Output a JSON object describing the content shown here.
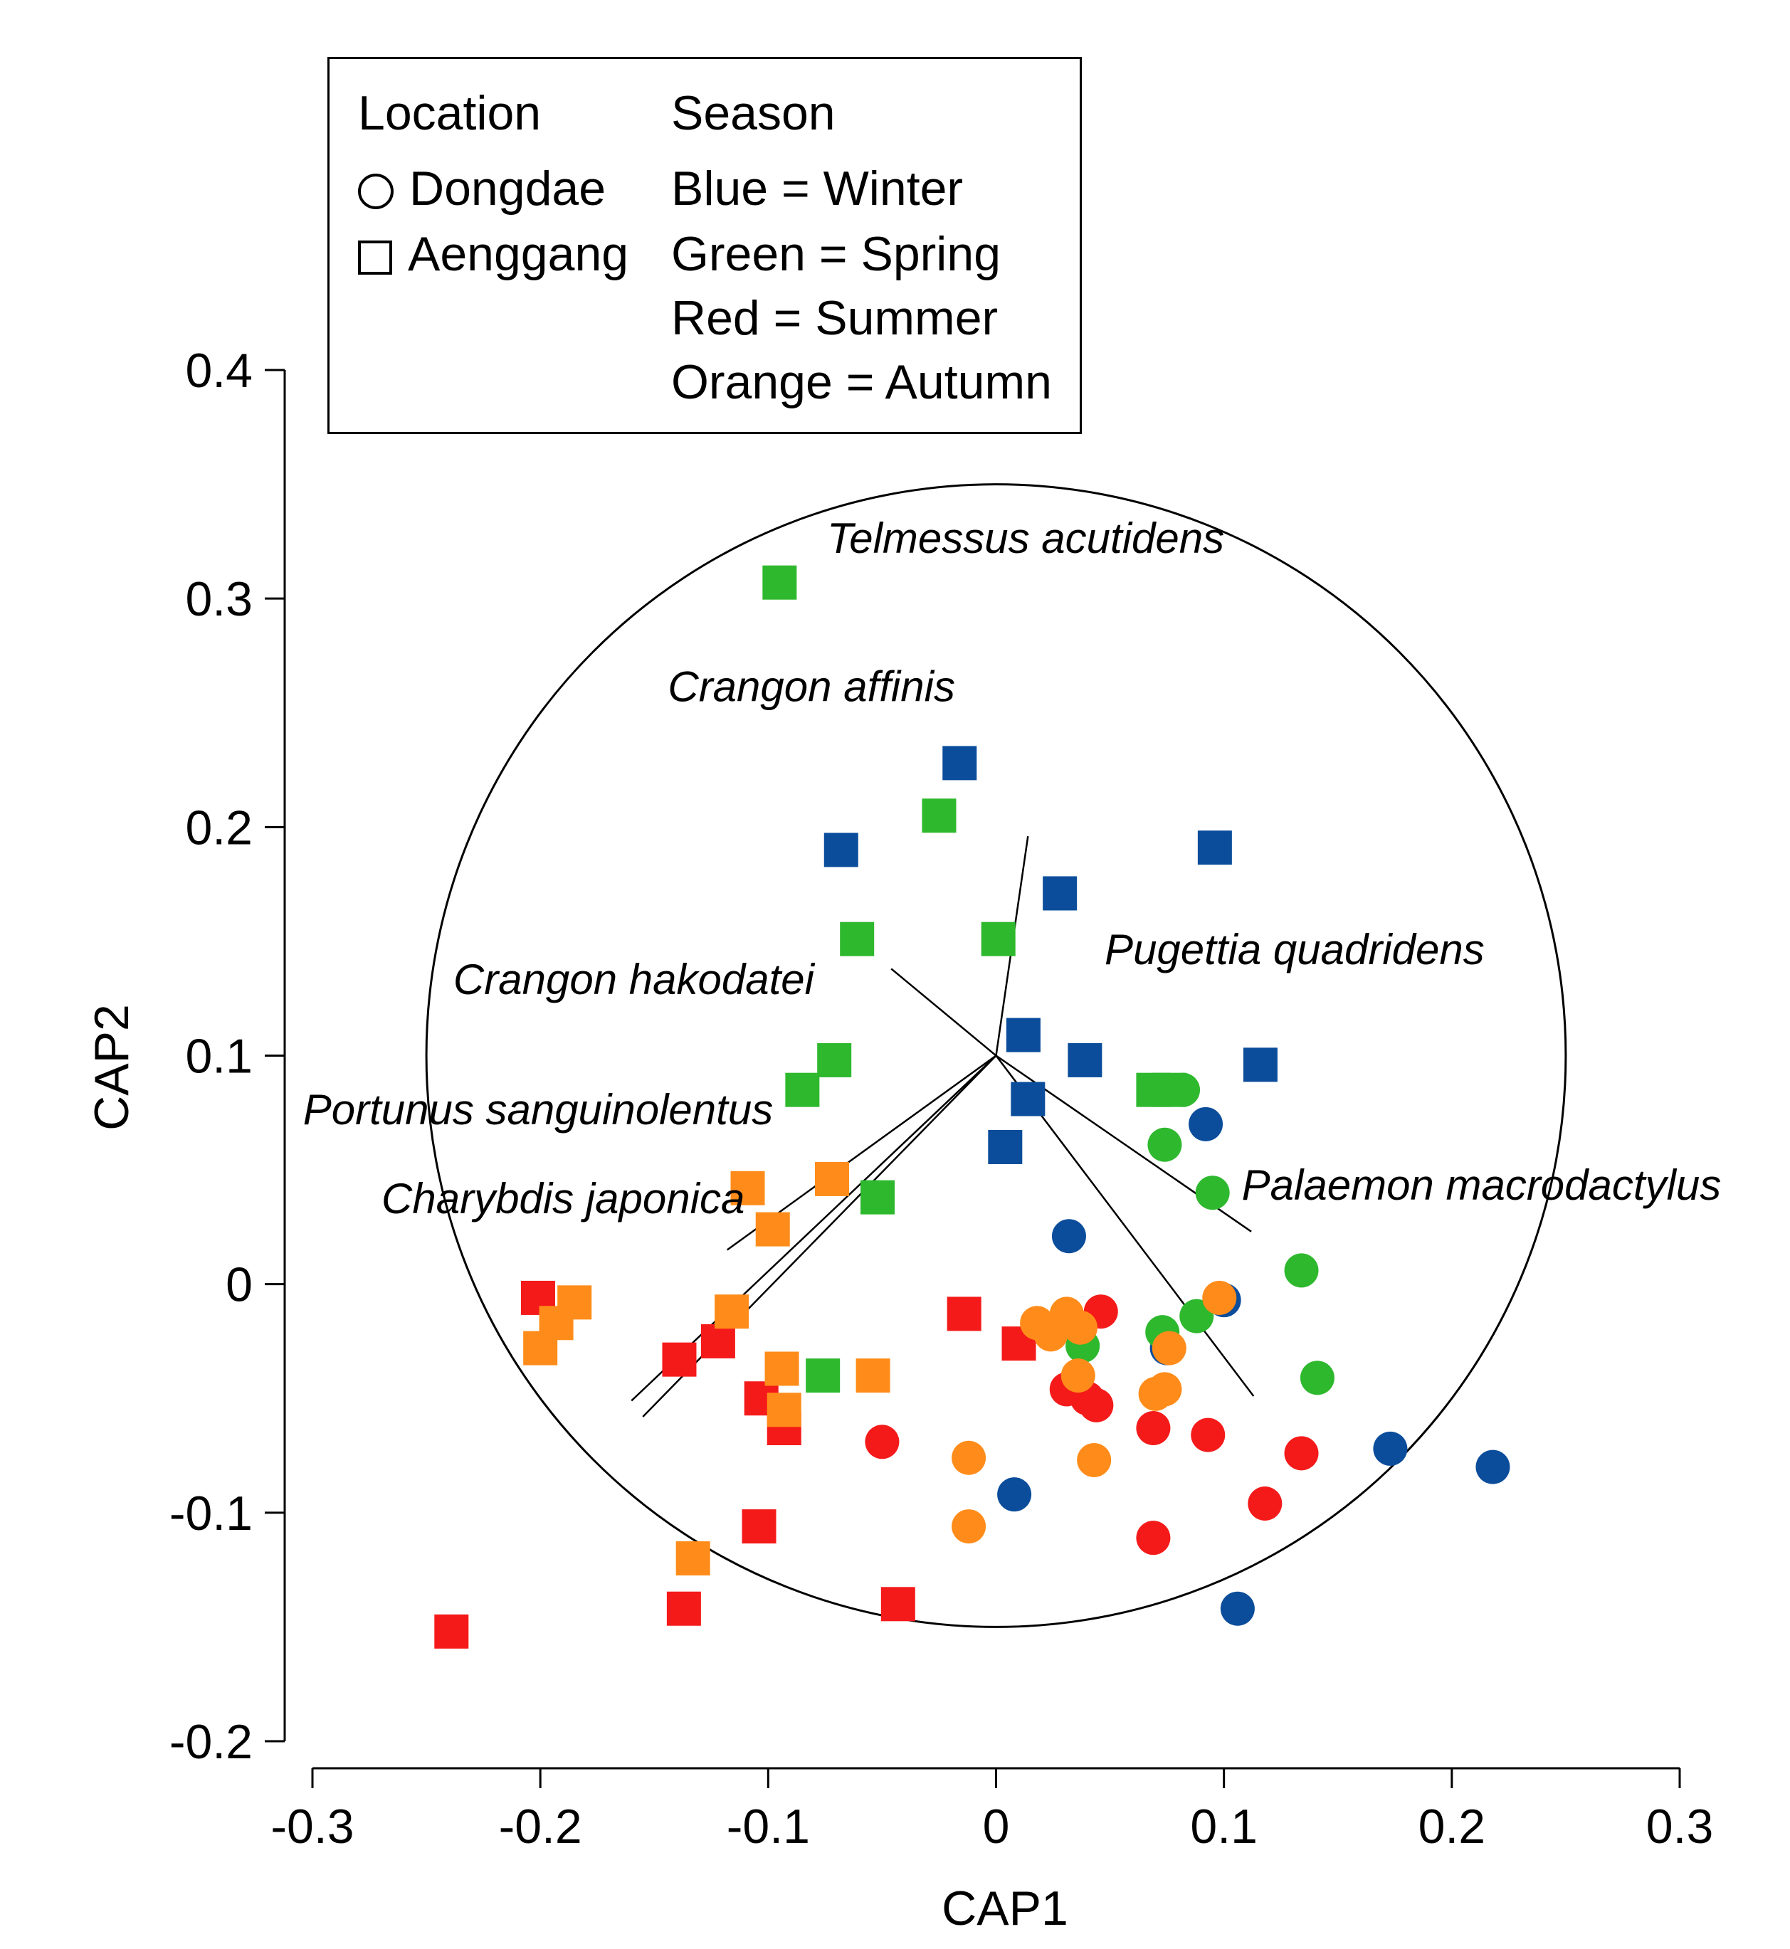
{
  "legend": {
    "location_heading": "Location",
    "season_heading": "Season",
    "locations": [
      {
        "shape": "circle",
        "label": "Dongdae"
      },
      {
        "shape": "square",
        "label": "Aenggang"
      }
    ],
    "seasons": [
      "Blue = Winter",
      "Green = Spring",
      "Red = Summer",
      "Orange = Autumn"
    ]
  },
  "colors": {
    "Winter": "#0b4d9b",
    "Spring": "#2eb82e",
    "Summer": "#f51a1a",
    "Autumn": "#ff8c1a"
  },
  "chart_data": {
    "type": "scatter",
    "xlabel": "CAP1",
    "ylabel": "CAP2",
    "xlim": [
      -0.3,
      0.3
    ],
    "ylim": [
      -0.2,
      0.4
    ],
    "xticks": [
      "-0.3",
      "-0.2",
      "-0.1",
      "0",
      "0.1",
      "0.2",
      "0.3"
    ],
    "yticks": [
      "0.4",
      "0.3",
      "0.2",
      "0.1",
      "0",
      "-0.1",
      "-0.2"
    ],
    "xtick_values": [
      -0.3,
      -0.2,
      -0.1,
      0,
      0.1,
      0.2,
      0.3
    ],
    "ytick_values": [
      0.4,
      0.3,
      0.2,
      0.1,
      0,
      -0.1,
      -0.2
    ],
    "circle": {
      "center": [
        0,
        0.1
      ],
      "radius": 0.25
    },
    "vectors": [
      {
        "label": "Telmessus acutidens",
        "end": [
          0.014,
          0.196
        ]
      },
      {
        "label": "Crangon affinis",
        "end": [
          -0.046,
          0.138
        ]
      },
      {
        "label": "Crangon hakodatei",
        "end": [
          -0.118,
          0.015
        ]
      },
      {
        "label": "Pugettia quadridens",
        "end": [
          0.112,
          0.023
        ]
      },
      {
        "label": "Portunus sanguinolentus",
        "end": [
          -0.16,
          -0.051
        ]
      },
      {
        "label": "Charybdis japonica",
        "end": [
          -0.155,
          -0.058
        ]
      },
      {
        "label": "Palaemon macrodactylus",
        "end": [
          0.113,
          -0.049
        ]
      }
    ],
    "series": [
      {
        "name": "Winter",
        "location": "Aenggang",
        "points": [
          [
            -0.016,
            0.228
          ],
          [
            -0.068,
            0.19
          ],
          [
            0.096,
            0.191
          ],
          [
            0.028,
            0.171
          ],
          [
            0.012,
            0.109
          ],
          [
            0.039,
            0.098
          ],
          [
            0.116,
            0.096
          ],
          [
            0.014,
            0.081
          ],
          [
            0.004,
            0.06
          ]
        ]
      },
      {
        "name": "Winter",
        "location": "Dongdae",
        "points": [
          [
            0.092,
            0.07
          ],
          [
            0.032,
            0.021
          ],
          [
            0.1,
            -0.007
          ],
          [
            0.075,
            -0.028
          ],
          [
            0.173,
            -0.072
          ],
          [
            0.218,
            -0.08
          ],
          [
            0.008,
            -0.092
          ],
          [
            0.106,
            -0.142
          ]
        ]
      },
      {
        "name": "Spring",
        "location": "Aenggang",
        "points": [
          [
            -0.095,
            0.307
          ],
          [
            -0.025,
            0.205
          ],
          [
            -0.061,
            0.151
          ],
          [
            0.001,
            0.151
          ],
          [
            -0.071,
            0.098
          ],
          [
            -0.085,
            0.085
          ],
          [
            0.069,
            0.085
          ],
          [
            0.076,
            0.085
          ],
          [
            -0.052,
            0.038
          ],
          [
            -0.076,
            -0.04
          ]
        ]
      },
      {
        "name": "Spring",
        "location": "Dongdae",
        "points": [
          [
            0.082,
            0.085
          ],
          [
            0.074,
            0.061
          ],
          [
            0.095,
            0.04
          ],
          [
            0.134,
            0.006
          ],
          [
            0.088,
            -0.014
          ],
          [
            0.073,
            -0.021
          ],
          [
            0.038,
            -0.027
          ],
          [
            0.141,
            -0.041
          ]
        ]
      },
      {
        "name": "Summer",
        "location": "Aenggang",
        "points": [
          [
            -0.201,
            -0.006
          ],
          [
            -0.014,
            -0.013
          ],
          [
            -0.139,
            -0.033
          ],
          [
            -0.122,
            -0.025
          ],
          [
            0.01,
            -0.026
          ],
          [
            -0.103,
            -0.05
          ],
          [
            -0.093,
            -0.063
          ],
          [
            -0.104,
            -0.106
          ],
          [
            -0.137,
            -0.142
          ],
          [
            -0.043,
            -0.14
          ],
          [
            -0.239,
            -0.152
          ]
        ]
      },
      {
        "name": "Summer",
        "location": "Dongdae",
        "points": [
          [
            0.046,
            -0.012
          ],
          [
            0.031,
            -0.046
          ],
          [
            0.04,
            -0.05
          ],
          [
            0.044,
            -0.053
          ],
          [
            -0.05,
            -0.069
          ],
          [
            0.069,
            -0.063
          ],
          [
            0.093,
            -0.066
          ],
          [
            0.134,
            -0.074
          ],
          [
            0.118,
            -0.096
          ],
          [
            0.069,
            -0.111
          ]
        ]
      },
      {
        "name": "Autumn",
        "location": "Aenggang",
        "points": [
          [
            -0.109,
            0.042
          ],
          [
            -0.072,
            0.046
          ],
          [
            -0.098,
            0.024
          ],
          [
            -0.185,
            -0.008
          ],
          [
            -0.193,
            -0.017
          ],
          [
            -0.116,
            -0.012
          ],
          [
            -0.2,
            -0.028
          ],
          [
            -0.094,
            -0.037
          ],
          [
            -0.054,
            -0.04
          ],
          [
            -0.093,
            -0.055
          ],
          [
            -0.133,
            -0.12
          ]
        ]
      },
      {
        "name": "Autumn",
        "location": "Dongdae",
        "points": [
          [
            0.018,
            -0.017
          ],
          [
            0.031,
            -0.013
          ],
          [
            0.024,
            -0.022
          ],
          [
            0.037,
            -0.019
          ],
          [
            0.098,
            -0.006
          ],
          [
            0.076,
            -0.028
          ],
          [
            0.036,
            -0.04
          ],
          [
            0.074,
            -0.046
          ],
          [
            0.07,
            -0.048
          ],
          [
            -0.012,
            -0.076
          ],
          [
            0.043,
            -0.077
          ],
          [
            -0.012,
            -0.106
          ]
        ]
      }
    ]
  }
}
